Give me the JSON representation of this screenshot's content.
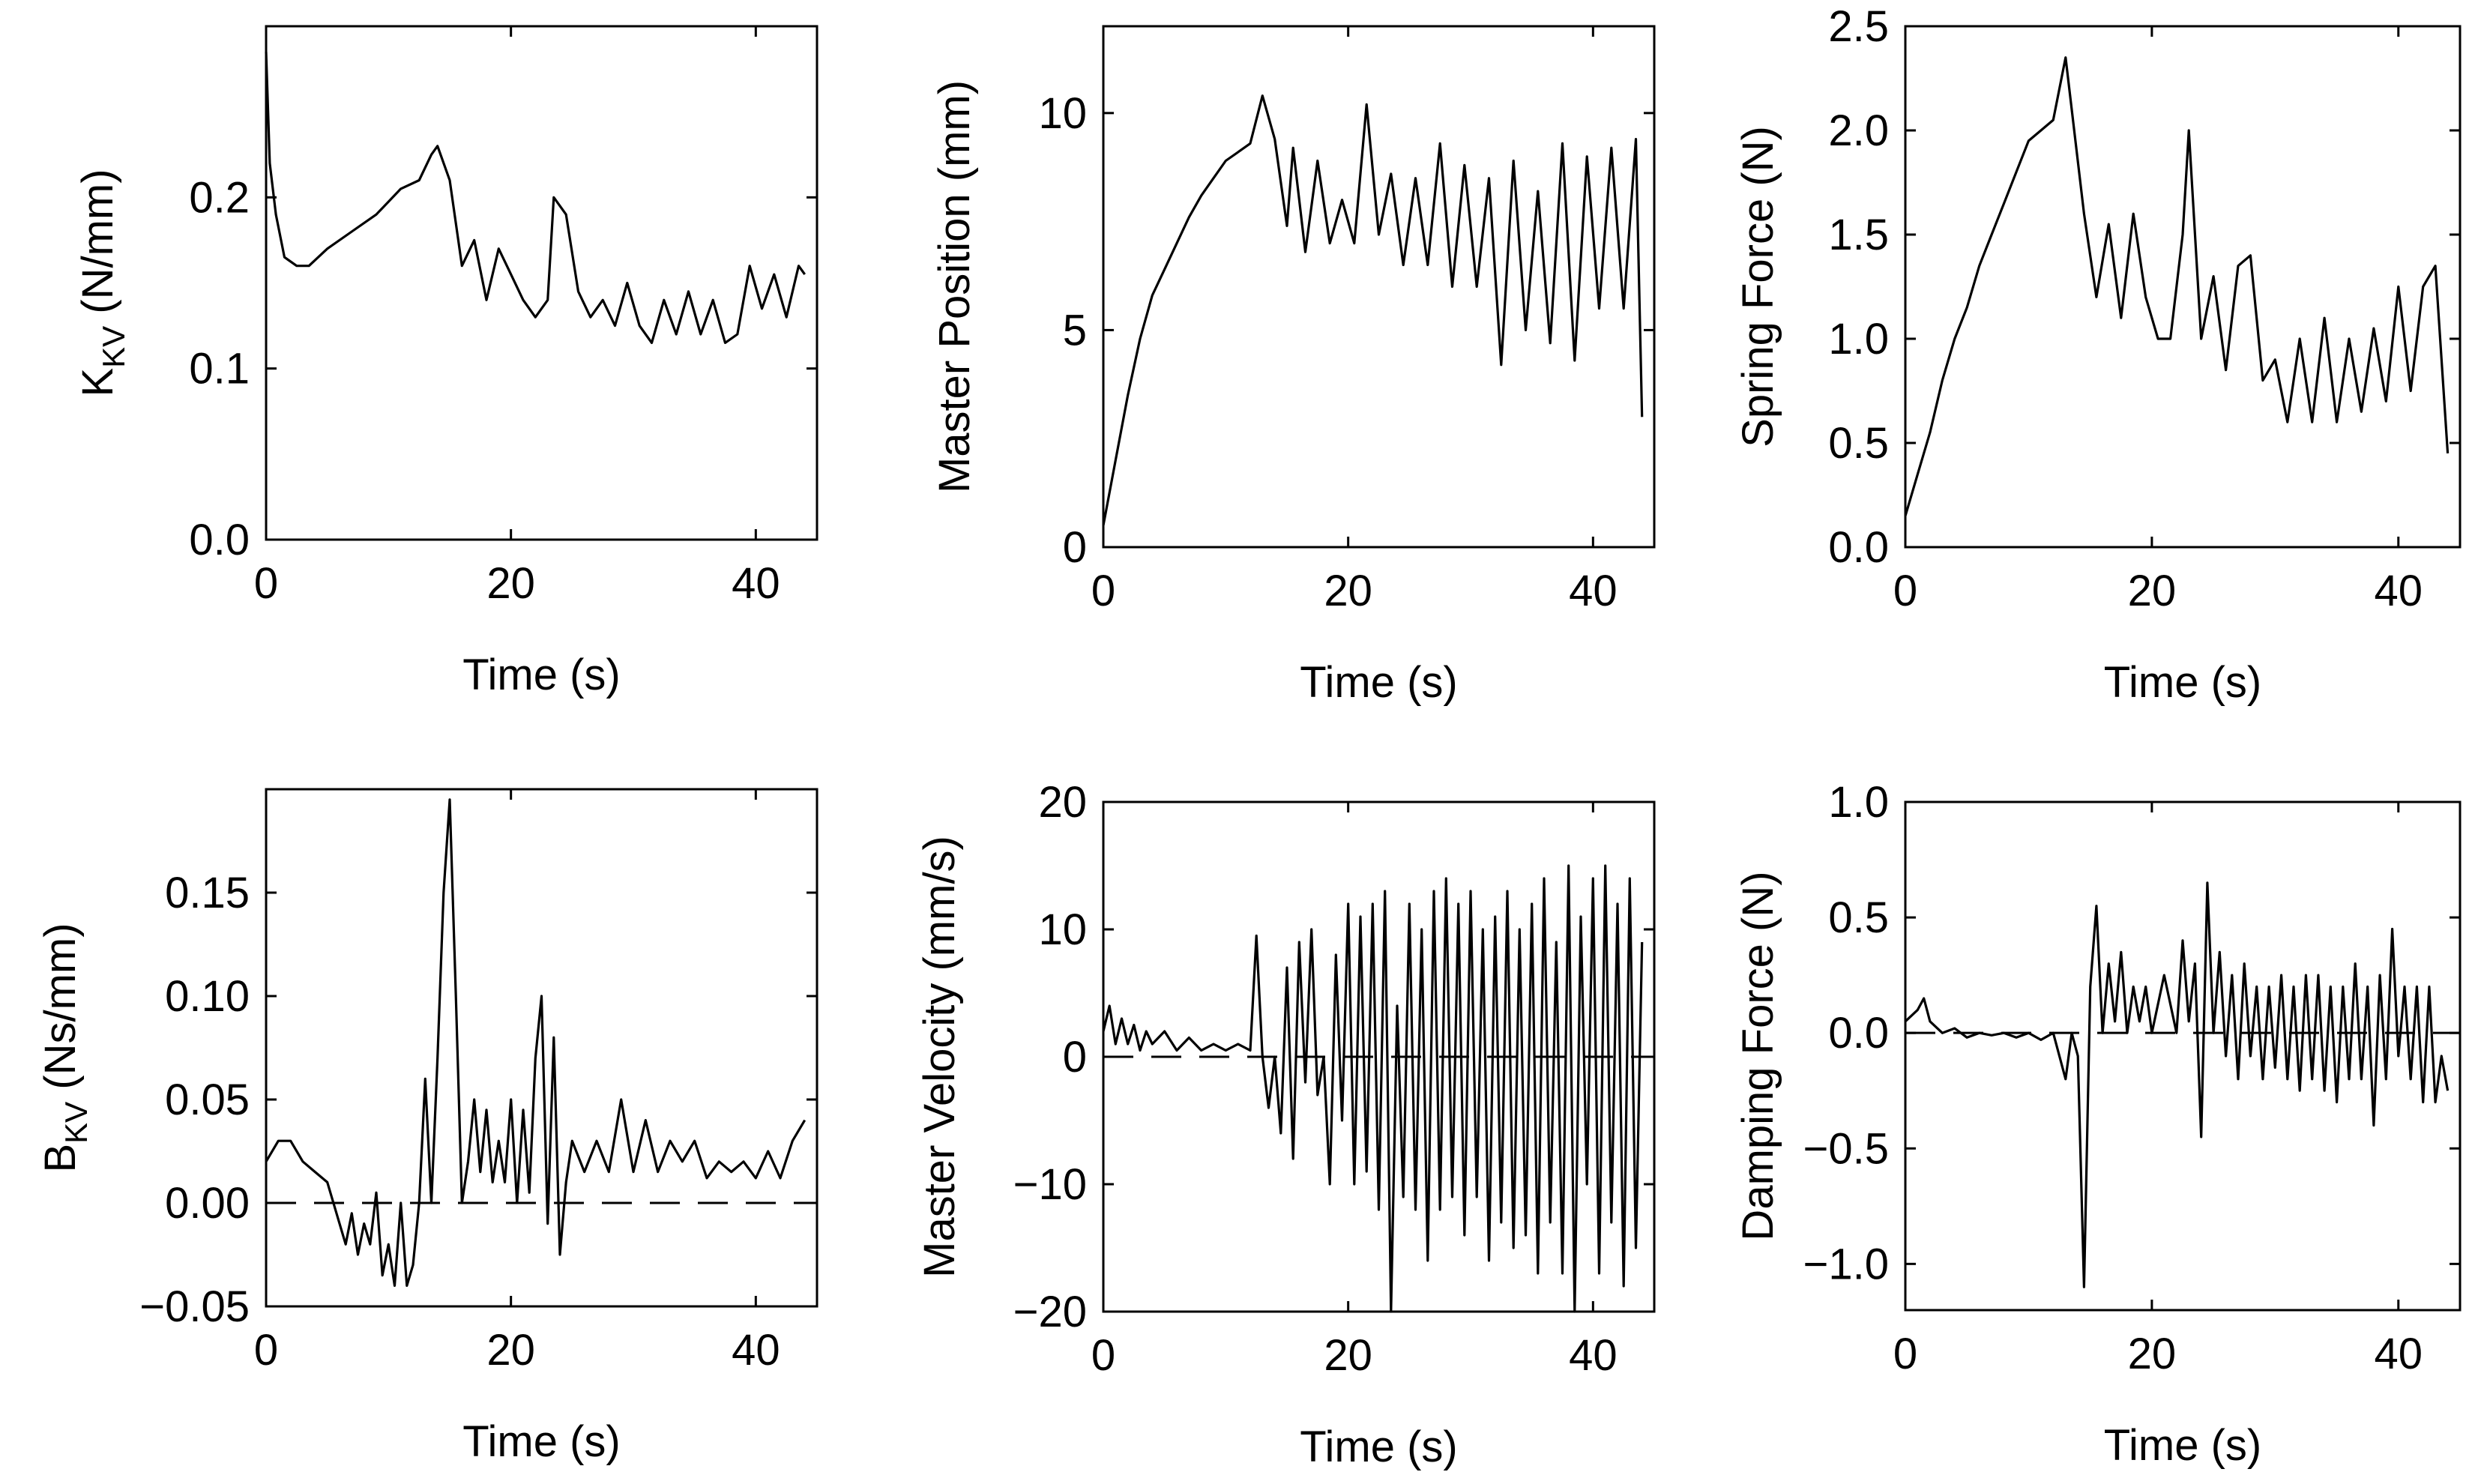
{
  "chart_data": [
    {
      "id": "kkv",
      "type": "line",
      "xlabel": "Time (s)",
      "ylabel_main": "K",
      "ylabel_sub": "KV",
      "ylabel_rest": " (N/mm)",
      "xlim": [
        0,
        45
      ],
      "ylim": [
        0.0,
        0.3
      ],
      "xticks": [
        0,
        20,
        40
      ],
      "xtick_labels": [
        "0",
        "20",
        "40"
      ],
      "yticks": [
        0.0,
        0.1,
        0.2
      ],
      "ytick_labels": [
        "0.0",
        "0.1",
        "0.2"
      ],
      "series": [
        {
          "name": "K_KV",
          "x": [
            0,
            0.3,
            0.8,
            1.5,
            2.5,
            3.5,
            5,
            7,
            9,
            11,
            12.5,
            13.5,
            14,
            15,
            16,
            17,
            18,
            19,
            20,
            21,
            22,
            23,
            23.5,
            24.5,
            25.5,
            26.5,
            27.5,
            28.5,
            29.5,
            30.5,
            31.5,
            32.5,
            33.5,
            34.5,
            35.5,
            36.5,
            37.5,
            38.5,
            39.5,
            40.5,
            41.5,
            42.5,
            43.5,
            44
          ],
          "y": [
            0.285,
            0.22,
            0.19,
            0.165,
            0.16,
            0.16,
            0.17,
            0.18,
            0.19,
            0.205,
            0.21,
            0.225,
            0.23,
            0.21,
            0.16,
            0.175,
            0.14,
            0.17,
            0.155,
            0.14,
            0.13,
            0.14,
            0.2,
            0.19,
            0.145,
            0.13,
            0.14,
            0.125,
            0.15,
            0.125,
            0.115,
            0.14,
            0.12,
            0.145,
            0.12,
            0.14,
            0.115,
            0.12,
            0.16,
            0.135,
            0.155,
            0.13,
            0.16,
            0.155
          ]
        }
      ]
    },
    {
      "id": "master-position",
      "type": "line",
      "xlabel": "Time (s)",
      "ylabel_main": "Master Position (mm)",
      "xlim": [
        0,
        45
      ],
      "ylim": [
        0,
        12
      ],
      "xticks": [
        0,
        20,
        40
      ],
      "xtick_labels": [
        "0",
        "20",
        "40"
      ],
      "yticks": [
        0,
        5,
        10
      ],
      "ytick_labels": [
        "0",
        "5",
        "10"
      ],
      "series": [
        {
          "name": "Master Position",
          "x": [
            0,
            1,
            2,
            3,
            4,
            5,
            6,
            7,
            8,
            9,
            10,
            11,
            12,
            13,
            14,
            15,
            15.5,
            16.5,
            17.5,
            18.5,
            19.5,
            20.5,
            21.5,
            22.5,
            23.5,
            24.5,
            25.5,
            26.5,
            27.5,
            28.5,
            29.5,
            30.5,
            31.5,
            32.5,
            33.5,
            34.5,
            35.5,
            36.5,
            37.5,
            38.5,
            39.5,
            40.5,
            41.5,
            42.5,
            43.5,
            44
          ],
          "y": [
            0.5,
            2.0,
            3.5,
            4.8,
            5.8,
            6.4,
            7.0,
            7.6,
            8.1,
            8.5,
            8.9,
            9.1,
            9.3,
            10.4,
            9.4,
            7.4,
            9.2,
            6.8,
            8.9,
            7.0,
            8.0,
            7.0,
            10.2,
            7.2,
            8.6,
            6.5,
            8.5,
            6.5,
            9.3,
            6.0,
            8.8,
            6.0,
            8.5,
            4.2,
            8.9,
            5.0,
            8.2,
            4.7,
            9.3,
            4.3,
            9.0,
            5.5,
            9.2,
            5.5,
            9.4,
            3.0
          ]
        }
      ]
    },
    {
      "id": "spring-force",
      "type": "line",
      "xlabel": "Time (s)",
      "ylabel_main": "Spring Force (N)",
      "xlim": [
        0,
        45
      ],
      "ylim": [
        0.0,
        2.5
      ],
      "xticks": [
        0,
        20,
        40
      ],
      "xtick_labels": [
        "0",
        "20",
        "40"
      ],
      "yticks": [
        0.0,
        0.5,
        1.0,
        1.5,
        2.0,
        2.5
      ],
      "ytick_labels": [
        "0.0",
        "0.5",
        "1.0",
        "1.5",
        "2.0",
        "2.5"
      ],
      "series": [
        {
          "name": "Spring Force",
          "x": [
            0,
            1,
            2,
            3,
            4,
            5,
            6,
            7,
            8,
            9,
            10,
            11,
            12,
            13,
            13.5,
            14.5,
            15.5,
            16.5,
            17.5,
            18.5,
            19.5,
            20.5,
            21.5,
            22.5,
            23,
            24,
            25,
            26,
            27,
            28,
            29,
            30,
            31,
            32,
            33,
            34,
            35,
            36,
            37,
            38,
            39,
            40,
            41,
            42,
            43,
            44
          ],
          "y": [
            0.15,
            0.35,
            0.55,
            0.8,
            1.0,
            1.15,
            1.35,
            1.5,
            1.65,
            1.8,
            1.95,
            2.0,
            2.05,
            2.35,
            2.1,
            1.6,
            1.2,
            1.55,
            1.1,
            1.6,
            1.2,
            1.0,
            1.0,
            1.5,
            2.0,
            1.0,
            1.3,
            0.85,
            1.35,
            1.4,
            0.8,
            0.9,
            0.6,
            1.0,
            0.6,
            1.1,
            0.6,
            1.0,
            0.65,
            1.05,
            0.7,
            1.25,
            0.75,
            1.25,
            1.35,
            0.45
          ]
        }
      ]
    },
    {
      "id": "bkv",
      "type": "line",
      "xlabel": "Time (s)",
      "ylabel_main": "B",
      "ylabel_sub": "KV",
      "ylabel_rest": " (Ns/mm)",
      "xlim": [
        0,
        45
      ],
      "ylim": [
        -0.05,
        0.2
      ],
      "xticks": [
        0,
        20,
        40
      ],
      "xtick_labels": [
        "0",
        "20",
        "40"
      ],
      "yticks": [
        -0.05,
        0.0,
        0.05,
        0.1,
        0.15
      ],
      "ytick_labels": [
        "−0.05",
        "0.00",
        "0.05",
        "0.10",
        "0.15"
      ],
      "reference_line": 0.0,
      "series": [
        {
          "name": "B_KV",
          "x": [
            0,
            1,
            2,
            3,
            4,
            5,
            6,
            6.5,
            7,
            7.5,
            8,
            8.5,
            9,
            9.5,
            10,
            10.5,
            11,
            11.5,
            12,
            12.5,
            13,
            13.5,
            14,
            14.5,
            15,
            15.5,
            16,
            16.5,
            17,
            17.5,
            18,
            18.5,
            19,
            19.5,
            20,
            20.5,
            21,
            21.5,
            22,
            22.5,
            23,
            23.5,
            24,
            24.5,
            25,
            26,
            27,
            28,
            29,
            30,
            31,
            32,
            33,
            34,
            35,
            36,
            37,
            38,
            39,
            40,
            41,
            42,
            43,
            44
          ],
          "y": [
            0.02,
            0.03,
            0.03,
            0.02,
            0.015,
            0.01,
            -0.01,
            -0.02,
            -0.005,
            -0.025,
            -0.01,
            -0.02,
            0.005,
            -0.035,
            -0.02,
            -0.04,
            0.0,
            -0.04,
            -0.03,
            0.0,
            0.06,
            0.0,
            0.07,
            0.15,
            0.195,
            0.1,
            0.0,
            0.02,
            0.05,
            0.015,
            0.045,
            0.01,
            0.03,
            0.01,
            0.05,
            0.0,
            0.045,
            0.005,
            0.07,
            0.1,
            -0.01,
            0.08,
            -0.025,
            0.01,
            0.03,
            0.015,
            0.03,
            0.015,
            0.05,
            0.015,
            0.04,
            0.015,
            0.03,
            0.02,
            0.03,
            0.012,
            0.02,
            0.015,
            0.02,
            0.012,
            0.025,
            0.012,
            0.03,
            0.04
          ]
        }
      ]
    },
    {
      "id": "master-velocity",
      "type": "line",
      "xlabel": "Time (s)",
      "ylabel_main": "Master Velocity (mm/s)",
      "xlim": [
        0,
        45
      ],
      "ylim": [
        -20,
        20
      ],
      "xticks": [
        0,
        20,
        40
      ],
      "xtick_labels": [
        "0",
        "20",
        "40"
      ],
      "yticks": [
        -20,
        -10,
        0,
        10,
        20
      ],
      "ytick_labels": [
        "−20",
        "−10",
        "0",
        "10",
        "20"
      ],
      "reference_line": 0,
      "series": [
        {
          "name": "Master Velocity",
          "x": [
            0,
            0.5,
            1,
            1.5,
            2,
            2.5,
            3,
            3.5,
            4,
            5,
            6,
            7,
            8,
            9,
            10,
            11,
            12,
            12.5,
            13,
            13.5,
            14,
            14.5,
            15,
            15.5,
            16,
            16.5,
            17,
            17.5,
            18,
            18.5,
            19,
            19.5,
            20,
            20.5,
            21,
            21.5,
            22,
            22.5,
            23,
            23.5,
            24,
            24.5,
            25,
            25.5,
            26,
            26.5,
            27,
            27.5,
            28,
            28.5,
            29,
            29.5,
            30,
            30.5,
            31,
            31.5,
            32,
            32.5,
            33,
            33.5,
            34,
            34.5,
            35,
            35.5,
            36,
            36.5,
            37,
            37.5,
            38,
            38.5,
            39,
            39.5,
            40,
            40.5,
            41,
            41.5,
            42,
            42.5,
            43,
            43.5,
            44
          ],
          "y": [
            2,
            4,
            1,
            3,
            1,
            2.5,
            0.5,
            2,
            1,
            2,
            0.5,
            1.5,
            0.5,
            1,
            0.5,
            1,
            0.5,
            9.5,
            0,
            -4,
            0,
            -6,
            7,
            -8,
            9,
            -2,
            10,
            -3,
            0,
            -10,
            8,
            -5,
            12,
            -10,
            11,
            -9,
            12,
            -12,
            13,
            -20,
            4,
            -11,
            12,
            -12,
            10,
            -16,
            13,
            -12,
            14,
            -11,
            12,
            -14,
            13,
            -11,
            10,
            -16,
            11,
            -13,
            13,
            -15,
            10,
            -14,
            12,
            -17,
            14,
            -13,
            9,
            -17,
            15,
            -20,
            11,
            -10,
            14,
            -17,
            15,
            -13,
            12,
            -18,
            14,
            -15,
            9
          ]
        }
      ]
    },
    {
      "id": "damping-force",
      "type": "line",
      "xlabel": "Time (s)",
      "ylabel_main": "Damping Force (N)",
      "xlim": [
        0,
        45
      ],
      "ylim": [
        -1.2,
        1.0
      ],
      "xticks": [
        0,
        20,
        40
      ],
      "xtick_labels": [
        "0",
        "20",
        "40"
      ],
      "yticks": [
        -1.0,
        -0.5,
        0.0,
        0.5,
        1.0
      ],
      "ytick_labels": [
        "−1.0",
        "−0.5",
        "0.0",
        "0.5",
        "1.0"
      ],
      "reference_line": 0.0,
      "series": [
        {
          "name": "Damping Force",
          "x": [
            0,
            1,
            1.5,
            2,
            3,
            4,
            5,
            6,
            7,
            8,
            9,
            10,
            11,
            12,
            13,
            13.5,
            14,
            14.5,
            15,
            15.5,
            16,
            16.5,
            17,
            17.5,
            18,
            18.5,
            19,
            19.5,
            20,
            21,
            22,
            22.5,
            23,
            23.5,
            24,
            24.5,
            25,
            25.5,
            26,
            26.5,
            27,
            27.5,
            28,
            28.5,
            29,
            29.5,
            30,
            30.5,
            31,
            31.5,
            32,
            32.5,
            33,
            33.5,
            34,
            34.5,
            35,
            35.5,
            36,
            36.5,
            37,
            37.5,
            38,
            38.5,
            39,
            39.5,
            40,
            40.5,
            41,
            41.5,
            42,
            42.5,
            43,
            43.5,
            44
          ],
          "y": [
            0.05,
            0.1,
            0.15,
            0.05,
            0.0,
            0.02,
            -0.02,
            0.0,
            -0.01,
            0.0,
            -0.02,
            0.0,
            -0.03,
            0.0,
            -0.2,
            0.0,
            -0.1,
            -1.1,
            0.2,
            0.55,
            0.0,
            0.3,
            0.05,
            0.35,
            0.0,
            0.2,
            0.05,
            0.2,
            0.0,
            0.25,
            0.0,
            0.4,
            0.05,
            0.3,
            -0.45,
            0.65,
            0.0,
            0.35,
            -0.1,
            0.25,
            -0.2,
            0.3,
            -0.1,
            0.2,
            -0.2,
            0.2,
            -0.15,
            0.25,
            -0.2,
            0.2,
            -0.25,
            0.25,
            -0.2,
            0.25,
            -0.25,
            0.2,
            -0.3,
            0.2,
            -0.2,
            0.3,
            -0.2,
            0.2,
            -0.4,
            0.25,
            -0.2,
            0.45,
            -0.1,
            0.2,
            -0.2,
            0.2,
            -0.3,
            0.2,
            -0.3,
            -0.1,
            -0.25
          ]
        }
      ]
    }
  ]
}
